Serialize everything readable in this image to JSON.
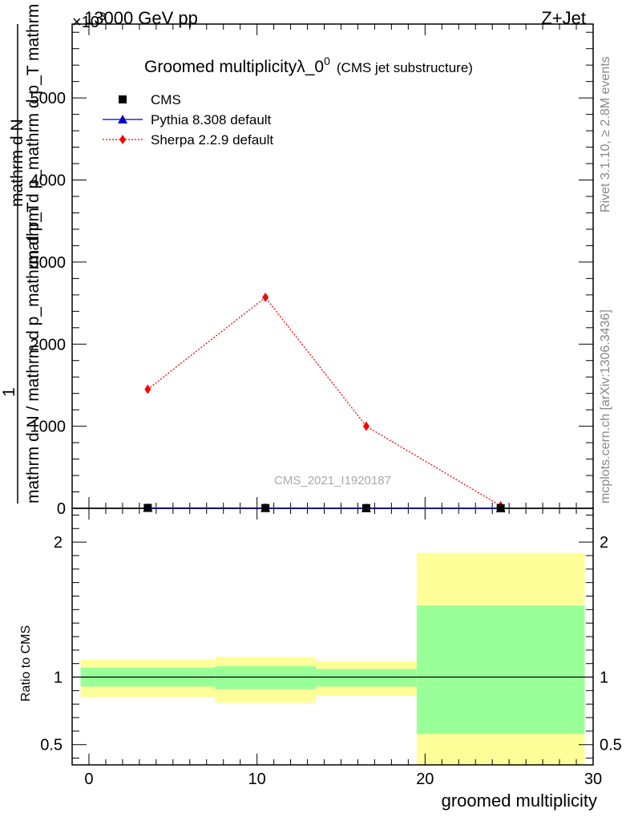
{
  "header": {
    "left": "13000 GeV pp",
    "right": "Z+Jet",
    "exponent": "×10",
    "exponent_power": "3"
  },
  "side_labels": {
    "rivet": "Rivet 3.1.10, ≥ 2.8M events",
    "mcplots": "mcplots.cern.ch [arXiv:1306.3436]"
  },
  "watermark": "CMS_2021_I1920187",
  "chart_data": [
    {
      "type": "line",
      "title": "Groomed multiplicityλ_0",
      "title_sup": "0",
      "subtitle": "(CMS jet substructure)",
      "ylabel": {
        "numerator_one": "1",
        "denominator": "mathrm d N / mathrm d p_mathrm d p_T",
        "numerator_dn": "mathrm d N",
        "den_right": "mathrm d p_mathrm d p_T mathrm d lambda"
      },
      "xlim": [
        -1,
        30
      ],
      "ylim": [
        0,
        5.9
      ],
      "yticks": [
        0,
        1,
        2,
        3,
        4,
        5
      ],
      "ytick_labels": [
        "0",
        "1000",
        "2000",
        "3000",
        "4000",
        "5000"
      ],
      "legend_position": "top-left",
      "series": [
        {
          "name": "CMS",
          "marker": "square",
          "color": "#000000",
          "x": [
            3.5,
            10.5,
            16.5,
            24.5
          ],
          "y": [
            0.005,
            0.004,
            0.003,
            0.001
          ]
        },
        {
          "name": "Pythia 8.308 default",
          "marker": "triangle",
          "color": "#0000cc",
          "x": [
            3.5,
            10.5,
            16.5,
            24.5
          ],
          "y": [
            0.005,
            0.004,
            0.003,
            0.001
          ]
        },
        {
          "name": "Sherpa 2.2.9 default",
          "marker": "diamond",
          "color": "#ff0000",
          "linestyle": "dotted",
          "x": [
            3.5,
            10.5,
            16.5,
            24.5
          ],
          "y": [
            1.45,
            2.57,
            1.0,
            0.03
          ]
        }
      ]
    },
    {
      "type": "area",
      "ylabel": "Ratio to CMS",
      "xlabel": "groomed multiplicity",
      "xlim": [
        -1,
        30
      ],
      "ylim": [
        0.35,
        2.25
      ],
      "xticks": [
        0,
        10,
        20,
        30
      ],
      "xtick_labels": [
        "0",
        "10",
        "20",
        "30"
      ],
      "yticks": [
        0.5,
        1,
        2
      ],
      "ytick_labels": [
        "0.5",
        "1",
        "2"
      ],
      "reference_line": 1,
      "bands": [
        {
          "x0": -0.5,
          "x1": 7.5,
          "stat_lo": 0.93,
          "stat_hi": 1.07,
          "tot_lo": 0.85,
          "tot_hi": 1.13
        },
        {
          "x0": 7.5,
          "x1": 13.5,
          "stat_lo": 0.91,
          "stat_hi": 1.08,
          "tot_lo": 0.81,
          "tot_hi": 1.15
        },
        {
          "x0": 13.5,
          "x1": 19.5,
          "stat_lo": 0.93,
          "stat_hi": 1.06,
          "tot_lo": 0.86,
          "tot_hi": 1.12
        },
        {
          "x0": 19.5,
          "x1": 29.5,
          "stat_lo": 0.58,
          "stat_hi": 1.53,
          "tot_lo": 0.35,
          "tot_hi": 1.92
        }
      ],
      "band_colors": {
        "stat": "#99ff99",
        "total": "#ffff99"
      }
    }
  ]
}
